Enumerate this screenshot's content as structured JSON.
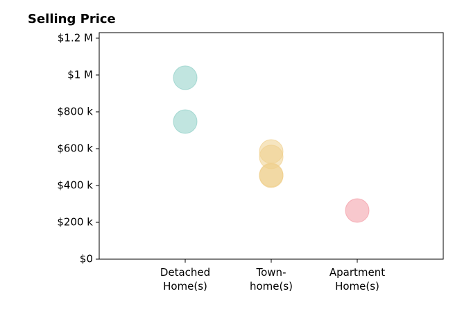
{
  "chart_data": {
    "type": "scatter",
    "title": "Selling Price",
    "xlim": [
      0,
      4
    ],
    "xticks": [
      {
        "value": 1,
        "label": "Detached\nHome(s)"
      },
      {
        "value": 2,
        "label": "Town-\nhome(s)"
      },
      {
        "value": 3,
        "label": "Apartment\nHome(s)"
      }
    ],
    "ylim": [
      0,
      1230000
    ],
    "yticks": [
      {
        "value": 0,
        "label": "$0"
      },
      {
        "value": 200000,
        "label": "$200 k"
      },
      {
        "value": 400000,
        "label": "$400 k"
      },
      {
        "value": 600000,
        "label": "$600 k"
      },
      {
        "value": 800000,
        "label": "$800 k"
      },
      {
        "value": 1000000,
        "label": "$1 M"
      },
      {
        "value": 1200000,
        "label": "$1.2 M"
      }
    ],
    "series": [
      {
        "color": "#8ecfc6",
        "x": [
          1,
          1
        ],
        "values": [
          985000,
          747000
        ]
      },
      {
        "color": "#efcf8c",
        "x": [
          2,
          2,
          2,
          2
        ],
        "values": [
          585000,
          555000,
          457000,
          453000
        ]
      },
      {
        "color": "#f39aa4",
        "x": [
          3
        ],
        "values": [
          264000
        ]
      }
    ]
  }
}
